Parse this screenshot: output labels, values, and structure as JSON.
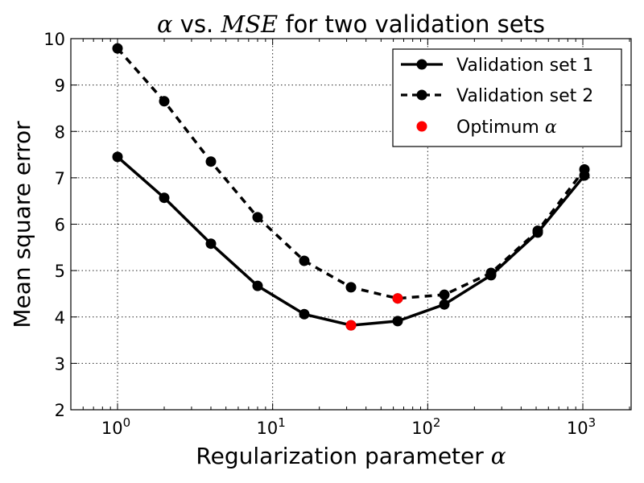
{
  "chart_data": {
    "type": "line",
    "title": {
      "math_prefix": "α",
      "middle": " vs. ",
      "math_mid": "MSE",
      "suffix": " for two validation sets"
    },
    "xlabel": {
      "text": "Regularization parameter ",
      "math": "α"
    },
    "ylabel": "Mean square error",
    "xscale": "log",
    "xlim": [
      0.5,
      2048
    ],
    "ylim": [
      2,
      10
    ],
    "xticks": [
      {
        "value": 1,
        "base": "10",
        "exp": "0"
      },
      {
        "value": 10,
        "base": "10",
        "exp": "1"
      },
      {
        "value": 100,
        "base": "10",
        "exp": "2"
      },
      {
        "value": 1000,
        "base": "10",
        "exp": "3"
      }
    ],
    "yticks": [
      2,
      3,
      4,
      5,
      6,
      7,
      8,
      9,
      10
    ],
    "grid": true,
    "legend_position": "top-right",
    "x": [
      1,
      2,
      4,
      8,
      16,
      32,
      64,
      128,
      256,
      512,
      1024
    ],
    "series": [
      {
        "name": "Validation set 1",
        "style": "solid",
        "color": "#000000",
        "values": [
          7.45,
          6.57,
          5.58,
          4.67,
          4.06,
          3.82,
          3.91,
          4.27,
          4.9,
          5.82,
          7.05
        ]
      },
      {
        "name": "Validation set 2",
        "style": "dashed",
        "color": "#000000",
        "values": [
          9.79,
          8.65,
          7.35,
          6.15,
          5.21,
          4.64,
          4.4,
          4.48,
          4.95,
          5.86,
          7.18
        ]
      }
    ],
    "optimum": {
      "name_text": "Optimum ",
      "name_math": "α",
      "color": "#ff0000",
      "points": [
        {
          "x": 32,
          "y": 3.82
        },
        {
          "x": 64,
          "y": 4.4
        }
      ]
    }
  }
}
